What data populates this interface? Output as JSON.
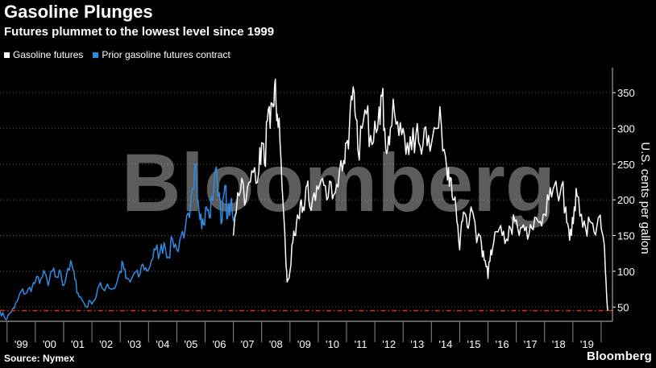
{
  "header": {
    "title": "Gasoline Plunges",
    "subtitle": "Futures plummet to the lowest level since 1999"
  },
  "legend": {
    "items": [
      {
        "label": "Gasoline futures",
        "color": "#ffffff"
      },
      {
        "label": "Prior gasoline futures contract",
        "color": "#2f8ce6"
      }
    ]
  },
  "footer": {
    "source": "Source: Nymex",
    "brand": "Bloomberg"
  },
  "watermark": "Bloomberg",
  "chart_data": {
    "type": "line",
    "title": "Gasoline Plunges",
    "subtitle": "Futures plummet to the lowest level since 1999",
    "ylabel": "U.S. cents per gallon",
    "xlabel": "",
    "ylim": [
      30,
      385
    ],
    "xlim": [
      1998.75,
      2020.4
    ],
    "yticks": [
      50,
      100,
      150,
      200,
      250,
      300,
      350
    ],
    "xtick_labels": [
      "'99",
      "'00",
      "'01",
      "'02",
      "'03",
      "'04",
      "'05",
      "'06",
      "'07",
      "'08",
      "'09",
      "'10",
      "'11",
      "'12",
      "'13",
      "'14",
      "'15",
      "'16",
      "'17",
      "'18",
      "'19"
    ],
    "grid": true,
    "legend_position": "top-left",
    "reference_line": {
      "y": 45,
      "color": "#e0201b",
      "style": "dash-dot"
    },
    "series": [
      {
        "name": "Prior gasoline futures contract",
        "color": "#2f8ce6",
        "x": [
          1998.75,
          1998.9,
          1999.0,
          1999.1,
          1999.25,
          1999.4,
          1999.5,
          1999.7,
          1999.9,
          2000.0,
          2000.2,
          2000.35,
          2000.45,
          2000.6,
          2000.75,
          2000.9,
          2001.0,
          2001.15,
          2001.3,
          2001.4,
          2001.5,
          2001.65,
          2001.8,
          2001.95,
          2002.1,
          2002.25,
          2002.4,
          2002.55,
          2002.7,
          2002.85,
          2003.0,
          2003.1,
          2003.2,
          2003.35,
          2003.5,
          2003.65,
          2003.8,
          2003.95,
          2004.1,
          2004.25,
          2004.4,
          2004.55,
          2004.7,
          2004.85,
          2005.0,
          2005.15,
          2005.3,
          2005.45,
          2005.6,
          2005.68,
          2005.75,
          2005.85,
          2005.95,
          2006.05,
          2006.15,
          2006.25,
          2006.35,
          2006.5,
          2006.6,
          2006.7,
          2006.8,
          2006.9,
          2007.0
        ],
        "y": [
          44,
          36,
          34,
          42,
          48,
          62,
          72,
          70,
          80,
          85,
          90,
          96,
          80,
          100,
          92,
          98,
          80,
          104,
          108,
          88,
          70,
          60,
          50,
          58,
          60,
          80,
          75,
          82,
          75,
          80,
          100,
          110,
          90,
          85,
          98,
          92,
          110,
          100,
          115,
          130,
          125,
          140,
          120,
          145,
          130,
          150,
          160,
          175,
          215,
          250,
          200,
          180,
          165,
          190,
          175,
          200,
          240,
          210,
          170,
          220,
          175,
          195,
          170
        ]
      },
      {
        "name": "Gasoline futures",
        "color": "#ffffff",
        "x": [
          2007.0,
          2007.15,
          2007.3,
          2007.45,
          2007.6,
          2007.75,
          2007.9,
          2008.0,
          2008.1,
          2008.2,
          2008.3,
          2008.4,
          2008.45,
          2008.5,
          2008.55,
          2008.65,
          2008.75,
          2008.85,
          2008.9,
          2009.0,
          2009.1,
          2009.2,
          2009.3,
          2009.4,
          2009.5,
          2009.6,
          2009.7,
          2009.85,
          2010.0,
          2010.15,
          2010.3,
          2010.45,
          2010.6,
          2010.75,
          2010.9,
          2011.0,
          2011.1,
          2011.2,
          2011.3,
          2011.4,
          2011.55,
          2011.7,
          2011.85,
          2012.0,
          2012.15,
          2012.25,
          2012.35,
          2012.45,
          2012.55,
          2012.7,
          2012.85,
          2013.0,
          2013.15,
          2013.3,
          2013.45,
          2013.6,
          2013.75,
          2013.9,
          2014.05,
          2014.2,
          2014.35,
          2014.5,
          2014.6,
          2014.7,
          2014.8,
          2014.9,
          2015.0,
          2015.1,
          2015.2,
          2015.3,
          2015.4,
          2015.5,
          2015.6,
          2015.7,
          2015.8,
          2015.9,
          2016.0,
          2016.1,
          2016.2,
          2016.35,
          2016.5,
          2016.65,
          2016.8,
          2016.95,
          2017.1,
          2017.25,
          2017.4,
          2017.55,
          2017.7,
          2017.85,
          2018.0,
          2018.15,
          2018.3,
          2018.45,
          2018.6,
          2018.75,
          2018.85,
          2018.95,
          2019.05,
          2019.15,
          2019.3,
          2019.45,
          2019.6,
          2019.75,
          2019.9,
          2020.0,
          2020.1,
          2020.15,
          2020.2,
          2020.25
        ],
        "y": [
          150,
          210,
          230,
          200,
          225,
          245,
          240,
          280,
          250,
          310,
          300,
          330,
          355,
          340,
          320,
          280,
          200,
          120,
          85,
          100,
          140,
          150,
          175,
          200,
          185,
          220,
          190,
          210,
          215,
          230,
          200,
          225,
          210,
          240,
          255,
          280,
          300,
          340,
          320,
          270,
          300,
          320,
          290,
          310,
          330,
          345,
          300,
          270,
          300,
          320,
          290,
          300,
          280,
          270,
          290,
          275,
          300,
          290,
          290,
          300,
          305,
          260,
          245,
          230,
          200,
          170,
          130,
          170,
          180,
          160,
          190,
          175,
          140,
          150,
          120,
          115,
          90,
          130,
          140,
          155,
          150,
          145,
          160,
          170,
          150,
          165,
          145,
          160,
          175,
          170,
          180,
          200,
          215,
          210,
          220,
          190,
          160,
          150,
          190,
          205,
          180,
          160,
          170,
          155,
          175,
          160,
          140,
          100,
          60,
          45
        ]
      }
    ]
  }
}
